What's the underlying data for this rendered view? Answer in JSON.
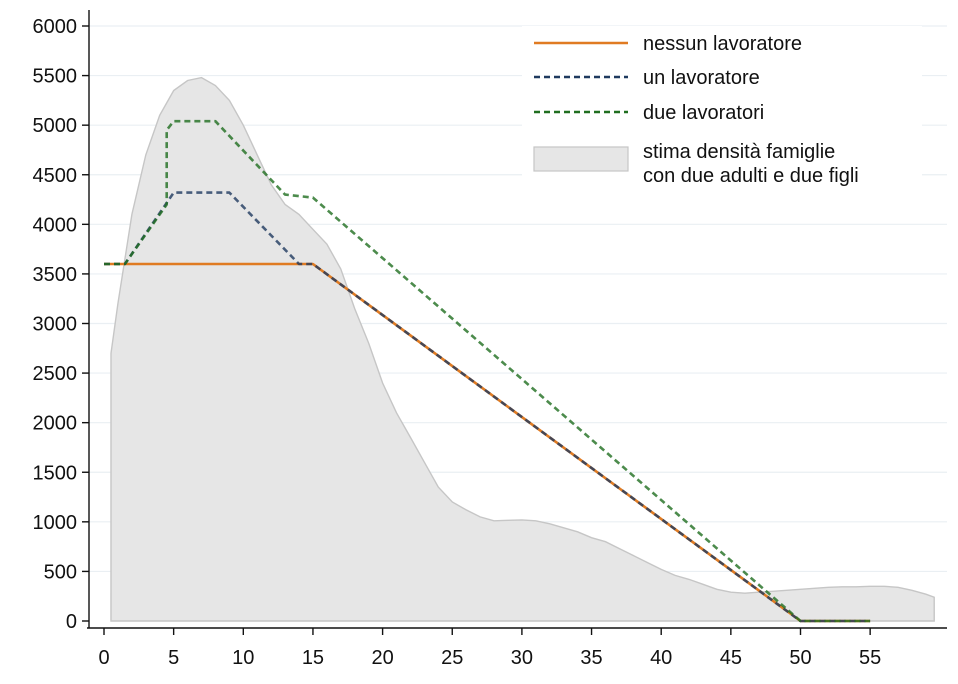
{
  "chart_data": {
    "type": "line",
    "title": "",
    "xlabel": "",
    "ylabel": "",
    "xlim": [
      0,
      60
    ],
    "ylim": [
      0,
      6000
    ],
    "x_ticks": [
      0,
      5,
      10,
      15,
      20,
      25,
      30,
      35,
      40,
      45,
      50,
      55
    ],
    "y_ticks": [
      0,
      500,
      1000,
      1500,
      2000,
      2500,
      3000,
      3500,
      4000,
      4500,
      5000,
      5500,
      6000
    ],
    "grid": "horizontal",
    "legend_position": "top-right",
    "density": {
      "name": "stima densità famiglie con due adulti e due figli",
      "color": "#e6e6e6",
      "x": [
        0.5,
        1,
        2,
        3,
        4,
        5,
        6,
        7,
        8,
        9,
        10,
        11,
        12,
        13,
        14,
        15,
        16,
        17,
        18,
        19,
        20,
        21,
        22,
        23,
        24,
        25,
        26,
        27,
        28,
        29,
        30,
        31,
        32,
        33,
        34,
        35,
        36,
        37,
        38,
        39,
        40,
        41,
        42,
        43,
        44,
        45,
        46,
        47,
        48,
        49,
        50,
        51,
        52,
        53,
        54,
        55,
        56,
        57,
        58,
        59,
        59.6
      ],
      "y": [
        2700,
        3200,
        4100,
        4700,
        5100,
        5350,
        5450,
        5480,
        5400,
        5250,
        5000,
        4700,
        4400,
        4200,
        4100,
        3950,
        3800,
        3550,
        3150,
        2800,
        2400,
        2100,
        1850,
        1600,
        1350,
        1200,
        1120,
        1050,
        1010,
        1015,
        1020,
        1010,
        980,
        940,
        900,
        840,
        800,
        730,
        660,
        590,
        520,
        460,
        420,
        370,
        320,
        290,
        280,
        290,
        300,
        310,
        320,
        330,
        340,
        345,
        345,
        350,
        350,
        340,
        310,
        270,
        240
      ]
    },
    "series": [
      {
        "name": "nessun lavoratore",
        "color": "#e07b22",
        "style": "solid",
        "x": [
          0,
          15,
          50,
          55
        ],
        "y": [
          3600,
          3600,
          0,
          0
        ]
      },
      {
        "name": "un lavoratore",
        "color": "#1f3a5f",
        "style": "dashed",
        "x": [
          0,
          1.5,
          5,
          9,
          14,
          15,
          50,
          55
        ],
        "y": [
          3600,
          3600,
          4320,
          4320,
          3600,
          3600,
          0,
          0
        ]
      },
      {
        "name": "due lavoratori",
        "color": "#1f6e1f",
        "style": "dashed",
        "x": [
          0,
          1.5,
          4.5,
          4.5,
          5,
          8,
          13,
          15,
          50,
          55
        ],
        "y": [
          3600,
          3600,
          4200,
          4950,
          5040,
          5040,
          4300,
          4270,
          0,
          0
        ]
      }
    ]
  }
}
